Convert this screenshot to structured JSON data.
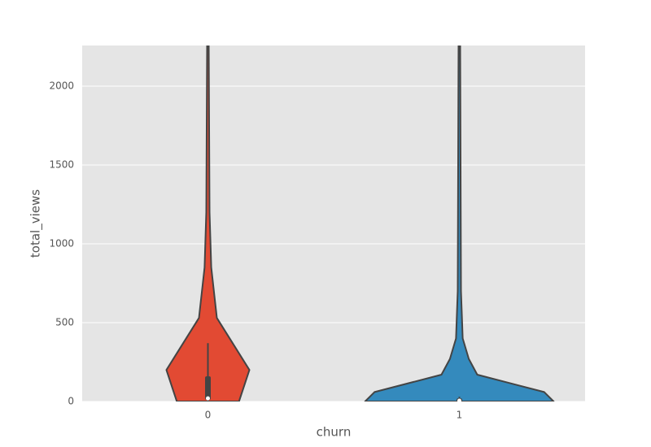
{
  "chart_data": {
    "type": "violin",
    "x_label": "churn",
    "y_label": "total_views",
    "categories": [
      "0",
      "1"
    ],
    "ylim": [
      0,
      2258
    ],
    "yticks": [
      0,
      500,
      1000,
      1500,
      2000
    ],
    "grid": true,
    "background": "#e5e5e5",
    "series": [
      {
        "name": "0",
        "color": "#e24a33",
        "y": [
          0,
          200,
          530,
          850,
          1200,
          2258
        ],
        "density": [
          0.33,
          0.44,
          0.095,
          0.035,
          0.017,
          0.009
        ],
        "whisker": [
          0,
          370
        ],
        "box": [
          10,
          160
        ],
        "median": 20
      },
      {
        "name": "1",
        "color": "#348abd",
        "y": [
          0,
          60,
          170,
          270,
          400,
          700,
          2258
        ],
        "density": [
          1.0,
          0.9,
          0.19,
          0.1,
          0.035,
          0.017,
          0.009
        ],
        "whisker": [
          0,
          30
        ],
        "box": [
          0,
          20
        ],
        "median": 5
      }
    ]
  }
}
